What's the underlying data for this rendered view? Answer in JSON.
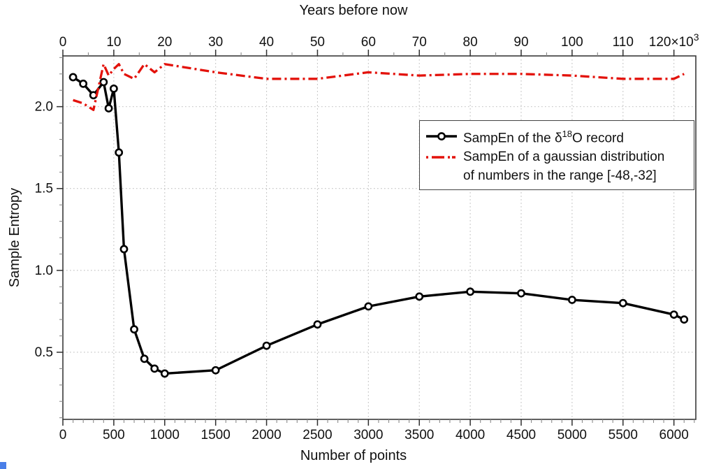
{
  "page": {
    "background": "#ffffff",
    "bottom_band_color": "#e6e6e6",
    "corner_accent_color": "#4a7fe8"
  },
  "chart_data": {
    "type": "line",
    "top_axis_title": "Years before now",
    "xlabel": "Number of points",
    "ylabel": "Sample Entropy",
    "xlim": [
      0,
      6215
    ],
    "ylim": [
      0.09,
      2.31
    ],
    "grid": "dotted gridlines at every major tick, both directions",
    "legend_position": "upper right",
    "colors": {
      "record_series": "#000000",
      "gaussian_series": "#e3120b",
      "grid": "#c0c0c0",
      "frame": "#3a3a3a",
      "tick_major": "#2f2f2f",
      "tick_minor": "#8a8a8a",
      "text": "#111111"
    },
    "x_axis_bottom": {
      "title": "Number of points",
      "major_values": [
        0,
        500,
        1000,
        1500,
        2000,
        2500,
        3000,
        3500,
        4000,
        4500,
        5000,
        5500,
        6000
      ],
      "labels": [
        "0",
        "500",
        "1000",
        "1500",
        "2000",
        "2500",
        "3000",
        "3500",
        "4000",
        "4500",
        "5000",
        "5500",
        "6000"
      ],
      "minor_step": 100
    },
    "x_axis_top": {
      "title": "Years before now",
      "major_values_points": [
        0,
        500,
        1000,
        1500,
        2000,
        2500,
        3000,
        3500,
        4000,
        4500,
        5000,
        5500,
        6000
      ],
      "labels": [
        "0",
        "10",
        "20",
        "30",
        "40",
        "50",
        "60",
        "70",
        "80",
        "90",
        "100",
        "110"
      ],
      "last_label": {
        "base": "120×10",
        "sup": "3"
      },
      "minor_step_points": 250,
      "years_per_point": 20
    },
    "y_axis": {
      "title": "Sample Entropy",
      "major_values": [
        0.5,
        1.0,
        1.5,
        2.0
      ],
      "labels": [
        "0.5",
        "1.0",
        "1.5",
        "2.0"
      ],
      "minor_step": 0.1
    },
    "series": [
      {
        "id": "record",
        "name": "SampEn of the δ¹⁸O record",
        "line_style": "solid",
        "marker": "open-circle",
        "x": [
          100,
          200,
          300,
          400,
          450,
          500,
          550,
          600,
          700,
          800,
          900,
          1000,
          1500,
          2000,
          2500,
          3000,
          3500,
          4000,
          4500,
          5000,
          5500,
          6000,
          6100
        ],
        "y": [
          2.18,
          2.14,
          2.07,
          2.15,
          1.99,
          2.11,
          1.72,
          1.13,
          0.64,
          0.46,
          0.4,
          0.37,
          0.39,
          0.54,
          0.67,
          0.78,
          0.84,
          0.87,
          0.86,
          0.82,
          0.8,
          0.73,
          0.7
        ]
      },
      {
        "id": "gaussian",
        "name": "SampEn of a gaussian distribution of numbers in the range [-48,-32]",
        "line_style": "dash-dot",
        "marker": "none",
        "x": [
          100,
          200,
          300,
          400,
          450,
          500,
          550,
          600,
          700,
          800,
          900,
          1000,
          1500,
          2000,
          2500,
          3000,
          3500,
          4000,
          4500,
          5000,
          5500,
          6000,
          6100
        ],
        "y": [
          2.04,
          2.02,
          1.98,
          2.26,
          2.19,
          2.23,
          2.26,
          2.2,
          2.17,
          2.26,
          2.21,
          2.26,
          2.21,
          2.17,
          2.17,
          2.21,
          2.19,
          2.2,
          2.2,
          2.19,
          2.17,
          2.17,
          2.2
        ]
      }
    ],
    "legend": {
      "item1": {
        "prefix": "SampEn of the δ",
        "sup": "18",
        "suffix": "O record"
      },
      "item2": {
        "line1": "SampEn of a gaussian distribution",
        "line2": "of numbers in the range [-48,-32]"
      }
    }
  }
}
